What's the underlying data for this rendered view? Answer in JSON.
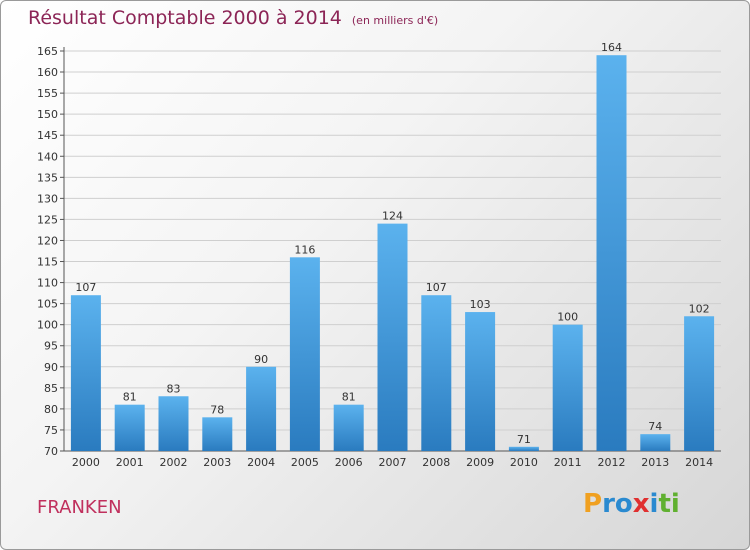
{
  "title": "Résultat Comptable 2000 à 2014",
  "unit": "(en milliers d'€)",
  "commune": "FRANKEN",
  "logo": {
    "text": "Proxiti",
    "letters": [
      "P",
      "r",
      "o",
      "x",
      "i",
      "t",
      "i"
    ],
    "colors": [
      "#f0a020",
      "#2a8ad0",
      "#2a8ad0",
      "#e03030",
      "#2a8ad0",
      "#60b030",
      "#60b030"
    ]
  },
  "colors": {
    "bar_light": "#5bb2ee",
    "bar_dark": "#2a7bbf",
    "grid": "#cfcfcf",
    "title": "#8c2556",
    "commune": "#c0305d"
  },
  "chart_data": {
    "type": "bar",
    "title": "Résultat Comptable 2000 à 2014",
    "subtitle": "(en milliers d'€)",
    "xlabel": "",
    "ylabel": "",
    "categories": [
      "2000",
      "2001",
      "2002",
      "2003",
      "2004",
      "2005",
      "2006",
      "2007",
      "2008",
      "2009",
      "2010",
      "2011",
      "2012",
      "2013",
      "2014"
    ],
    "values": [
      107,
      81,
      83,
      78,
      90,
      116,
      81,
      124,
      107,
      103,
      71,
      100,
      164,
      74,
      102
    ],
    "ylim": [
      70,
      165
    ],
    "yticks": [
      70,
      75,
      80,
      85,
      90,
      95,
      100,
      105,
      110,
      115,
      120,
      125,
      130,
      135,
      140,
      145,
      150,
      155,
      160,
      165
    ],
    "grid": true,
    "data_labels": true
  }
}
